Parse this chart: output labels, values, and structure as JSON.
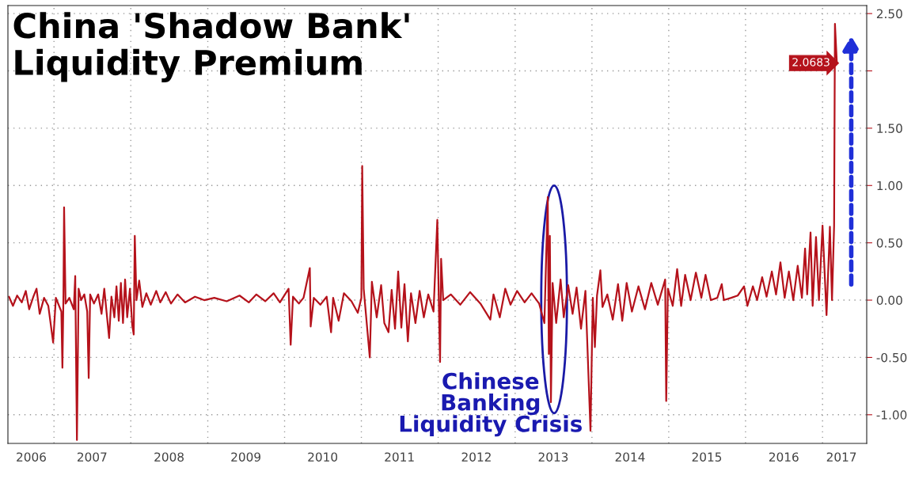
{
  "chart_data": {
    "type": "line",
    "title": "China 'Shadow Bank'\nLiquidity Premium",
    "annotations": [
      "Chinese\nBanking\nLiquidity Crisis"
    ],
    "xlim": [
      "2006-05-27",
      "2017-07-30"
    ],
    "xticks": [
      {
        "value": "2007-01-01",
        "label": null
      },
      {
        "value": "2008-01-01",
        "label": null
      },
      {
        "value": "2009-01-01",
        "label": null
      },
      {
        "value": "2010-01-01",
        "label": null
      },
      {
        "value": "2011-01-01",
        "label": null
      },
      {
        "value": "2012-01-01",
        "label": null
      },
      {
        "value": "2013-01-01",
        "label": null
      },
      {
        "value": "2014-01-01",
        "label": null
      },
      {
        "value": "2015-01-01",
        "label": null
      },
      {
        "value": "2016-01-01",
        "label": null
      },
      {
        "value": "2017-01-01",
        "label": null
      },
      {
        "value": "2006-09-15",
        "label": "2006"
      },
      {
        "value": "2007-07-01",
        "label": "2007"
      },
      {
        "value": "2008-07-01",
        "label": "2008"
      },
      {
        "value": "2009-07-01",
        "label": "2009"
      },
      {
        "value": "2010-07-01",
        "label": "2010"
      },
      {
        "value": "2011-07-01",
        "label": "2011"
      },
      {
        "value": "2012-07-01",
        "label": "2012"
      },
      {
        "value": "2013-07-01",
        "label": "2013"
      },
      {
        "value": "2014-07-01",
        "label": "2014"
      },
      {
        "value": "2015-07-01",
        "label": "2015"
      },
      {
        "value": "2016-07-01",
        "label": "2016"
      },
      {
        "value": "2017-04-01",
        "label": "2017"
      }
    ],
    "ylim": [
      -1.25,
      2.57
    ],
    "yticks": [
      {
        "value": -1.0,
        "label": "-1.00"
      },
      {
        "value": -0.5,
        "label": "-0.50"
      },
      {
        "value": 0.0,
        "label": "0.00"
      },
      {
        "value": 0.5,
        "label": "0.50"
      },
      {
        "value": 1.0,
        "label": "1.00"
      },
      {
        "value": 1.5,
        "label": "1.50"
      },
      {
        "value": 2.0,
        "label": null
      },
      {
        "value": 2.5,
        "label": "2.50"
      }
    ],
    "grid": true,
    "series": [
      {
        "color": "#b5121b",
        "x": [
          "2006-06-01",
          "2006-06-20",
          "2006-07-10",
          "2006-08-01",
          "2006-08-20",
          "2006-09-05",
          "2006-09-25",
          "2006-10-10",
          "2006-10-25",
          "2006-11-15",
          "2006-12-05",
          "2006-12-28",
          "2007-01-10",
          "2007-02-05",
          "2007-02-10",
          "2007-02-15",
          "2007-02-18",
          "2007-02-25",
          "2007-03-15",
          "2007-04-05",
          "2007-04-12",
          "2007-04-20",
          "2007-04-28",
          "2007-05-10",
          "2007-05-25",
          "2007-06-08",
          "2007-06-15",
          "2007-06-22",
          "2007-07-10",
          "2007-07-30",
          "2007-08-15",
          "2007-08-28",
          "2007-09-20",
          "2007-10-01",
          "2007-10-15",
          "2007-10-25",
          "2007-11-05",
          "2007-11-15",
          "2007-11-25",
          "2007-12-05",
          "2007-12-15",
          "2007-12-28",
          "2008-01-08",
          "2008-01-15",
          "2008-01-20",
          "2008-01-28",
          "2008-02-10",
          "2008-02-25",
          "2008-03-15",
          "2008-04-05",
          "2008-05-01",
          "2008-05-20",
          "2008-06-15",
          "2008-07-10",
          "2008-08-10",
          "2008-09-15",
          "2008-11-01",
          "2008-12-15",
          "2009-02-01",
          "2009-04-01",
          "2009-06-01",
          "2009-07-15",
          "2009-08-20",
          "2009-10-01",
          "2009-11-10",
          "2009-12-10",
          "2010-01-20",
          "2010-01-30",
          "2010-02-10",
          "2010-03-10",
          "2010-04-01",
          "2010-05-01",
          "2010-05-05",
          "2010-05-20",
          "2010-06-20",
          "2010-07-20",
          "2010-08-10",
          "2010-08-20",
          "2010-09-15",
          "2010-10-10",
          "2010-11-15",
          "2010-12-15",
          "2011-01-01",
          "2011-01-05",
          "2011-01-12",
          "2011-02-10",
          "2011-02-20",
          "2011-03-15",
          "2011-04-05",
          "2011-04-20",
          "2011-05-10",
          "2011-05-25",
          "2011-06-10",
          "2011-06-25",
          "2011-07-10",
          "2011-07-25",
          "2011-08-10",
          "2011-08-25",
          "2011-09-15",
          "2011-10-05",
          "2011-10-25",
          "2011-11-15",
          "2011-12-10",
          "2011-12-28",
          "2012-01-05",
          "2012-01-10",
          "2012-01-15",
          "2012-01-25",
          "2012-03-01",
          "2012-04-15",
          "2012-06-01",
          "2012-07-20",
          "2012-09-05",
          "2012-09-20",
          "2012-10-20",
          "2012-11-15",
          "2012-12-10",
          "2013-01-10",
          "2013-02-15",
          "2013-03-20",
          "2013-04-25",
          "2013-05-20",
          "2013-06-05",
          "2013-06-10",
          "2013-06-15",
          "2013-06-20",
          "2013-06-28",
          "2013-07-15",
          "2013-08-05",
          "2013-08-20",
          "2013-09-10",
          "2013-10-01",
          "2013-10-20",
          "2013-11-10",
          "2013-12-01",
          "2013-12-25",
          "2014-01-05",
          "2014-01-15",
          "2014-01-25",
          "2014-02-10",
          "2014-02-20",
          "2014-03-15",
          "2014-04-10",
          "2014-05-05",
          "2014-05-25",
          "2014-06-15",
          "2014-07-10",
          "2014-08-10",
          "2014-09-10",
          "2014-10-10",
          "2014-11-10",
          "2014-12-15",
          "2014-12-20",
          "2014-12-28",
          "2015-01-20",
          "2015-02-10",
          "2015-03-01",
          "2015-03-20",
          "2015-04-15",
          "2015-05-10",
          "2015-06-05",
          "2015-06-25",
          "2015-07-20",
          "2015-08-20",
          "2015-09-10",
          "2015-09-20",
          "2015-10-25",
          "2015-11-25",
          "2015-12-25",
          "2016-01-10",
          "2016-02-05",
          "2016-02-25",
          "2016-03-20",
          "2016-04-10",
          "2016-05-05",
          "2016-05-25",
          "2016-06-15",
          "2016-07-05",
          "2016-07-25",
          "2016-08-15",
          "2016-09-05",
          "2016-09-25",
          "2016-10-10",
          "2016-10-20",
          "2016-11-05",
          "2016-11-15",
          "2016-12-01",
          "2016-12-15",
          "2017-01-01",
          "2017-01-20",
          "2017-02-05",
          "2017-02-15",
          "2017-02-25",
          "2017-03-01",
          "2017-03-10"
        ],
        "values": [
          0.03,
          -0.05,
          0.04,
          -0.02,
          0.08,
          -0.08,
          0.03,
          0.1,
          -0.12,
          0.02,
          -0.05,
          -0.37,
          0.02,
          -0.1,
          -0.59,
          0.05,
          0.81,
          -0.03,
          0.02,
          -0.08,
          0.21,
          -1.22,
          0.1,
          0.0,
          0.05,
          -0.1,
          -0.68,
          0.05,
          -0.03,
          0.05,
          -0.12,
          0.1,
          -0.33,
          0.03,
          -0.15,
          0.12,
          -0.18,
          0.15,
          -0.2,
          0.18,
          -0.15,
          0.1,
          -0.22,
          -0.3,
          0.56,
          0.0,
          0.17,
          -0.06,
          0.06,
          -0.04,
          0.08,
          -0.02,
          0.07,
          -0.03,
          0.05,
          -0.02,
          0.03,
          0.0,
          0.02,
          -0.01,
          0.04,
          -0.02,
          0.05,
          -0.01,
          0.06,
          -0.02,
          0.1,
          -0.39,
          0.03,
          -0.03,
          0.02,
          0.28,
          -0.23,
          0.02,
          -0.04,
          0.03,
          -0.28,
          0.02,
          -0.18,
          0.06,
          -0.01,
          -0.11,
          0.02,
          1.17,
          0.1,
          -0.5,
          0.16,
          -0.15,
          0.13,
          -0.2,
          -0.28,
          0.09,
          -0.25,
          0.25,
          -0.24,
          0.14,
          -0.36,
          0.06,
          -0.2,
          0.08,
          -0.15,
          0.05,
          -0.1,
          0.7,
          -0.1,
          -0.54,
          0.36,
          0.0,
          0.05,
          -0.04,
          0.07,
          -0.03,
          -0.17,
          0.05,
          -0.15,
          0.1,
          -0.04,
          0.08,
          -0.02,
          0.06,
          -0.03,
          -0.2,
          0.9,
          -0.47,
          0.56,
          -0.89,
          0.15,
          -0.2,
          0.18,
          -0.15,
          0.13,
          -0.12,
          0.11,
          -0.25,
          0.08,
          -1.14,
          0.02,
          -0.41,
          0.04,
          0.26,
          -0.06,
          0.05,
          -0.17,
          0.14,
          -0.18,
          0.15,
          -0.1,
          0.12,
          -0.08,
          0.15,
          -0.04,
          0.18,
          -0.88,
          0.1,
          -0.05,
          0.27,
          -0.05,
          0.22,
          0.0,
          0.24,
          0.02,
          0.22,
          0.0,
          0.02,
          0.14,
          0.0,
          0.02,
          0.04,
          0.12,
          -0.05,
          0.12,
          0.0,
          0.2,
          0.03,
          0.25,
          0.05,
          0.33,
          0.02,
          0.25,
          0.0,
          0.3,
          0.02,
          0.45,
          0.05,
          0.59,
          -0.05,
          0.55,
          0.0,
          0.65,
          -0.13,
          0.64,
          0.0,
          0.65,
          2.41,
          2.0683
        ],
        "value_labels": [
          null,
          null,
          null,
          null,
          null,
          null,
          null,
          null,
          null,
          null,
          null,
          null,
          null,
          null,
          null,
          null,
          null,
          null,
          null,
          null,
          null,
          null,
          null,
          null,
          null,
          null,
          null,
          null,
          null,
          null,
          null,
          null,
          null,
          null,
          null,
          null,
          null,
          null,
          null,
          null,
          null,
          null,
          null,
          null,
          null,
          null,
          null,
          null,
          null,
          null,
          null,
          null,
          null,
          null,
          null,
          null,
          null,
          null,
          null,
          null,
          null,
          null,
          null,
          null,
          null,
          null,
          null,
          null,
          null,
          null,
          null,
          null,
          null,
          null,
          null,
          null,
          null,
          null,
          null,
          null,
          null,
          null,
          null,
          null,
          null,
          null,
          null,
          null,
          null,
          null,
          null,
          null,
          null,
          null,
          null,
          null,
          null,
          null,
          null,
          null,
          null,
          null,
          null,
          null,
          null,
          null,
          null,
          null,
          null,
          null,
          null,
          null,
          null,
          null,
          null,
          null,
          null,
          null,
          null,
          null,
          null,
          null,
          null,
          null,
          null,
          null,
          null,
          null,
          null,
          null,
          null,
          null,
          null,
          null,
          null,
          null,
          null,
          null,
          null,
          null,
          null,
          null,
          null,
          null,
          null,
          null,
          null,
          null,
          null,
          null,
          null,
          null,
          null,
          null,
          null,
          null,
          null,
          null,
          null,
          null,
          null,
          null,
          null,
          null,
          null,
          null,
          null,
          null,
          null,
          null,
          null,
          null,
          null,
          null,
          null,
          null,
          null,
          null,
          null,
          null,
          null,
          null,
          null,
          null,
          null,
          null,
          null,
          null,
          null,
          null,
          null,
          null,
          null,
          null,
          "2.0683"
        ]
      }
    ]
  }
}
